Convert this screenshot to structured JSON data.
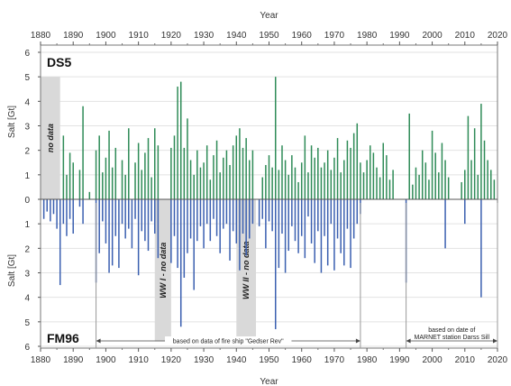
{
  "chart_data": {
    "type": "bar",
    "x_axis": {
      "title": "Year",
      "range": [
        1880,
        2020
      ],
      "ticks": [
        1880,
        1890,
        1900,
        1910,
        1920,
        1930,
        1940,
        1950,
        1960,
        1970,
        1980,
        1990,
        2000,
        2010,
        2020
      ],
      "shown": "top and bottom"
    },
    "y_axis": {
      "title": "Salt [Gt]",
      "ticks_top": [
        6,
        5,
        4,
        3,
        2,
        1,
        0
      ],
      "ticks_bottom": [
        1,
        2,
        3,
        4,
        5,
        6
      ],
      "range_top": [
        0,
        6
      ],
      "range_bottom": [
        0,
        6
      ]
    },
    "grid": true,
    "series": [
      {
        "name": "DS5",
        "color": "#2e8b57",
        "direction": "up",
        "points": [
          [
            1887,
            2.6
          ],
          [
            1888,
            1.0
          ],
          [
            1889,
            1.9
          ],
          [
            1890,
            1.5
          ],
          [
            1892,
            1.2
          ],
          [
            1893,
            3.8
          ],
          [
            1895,
            0.3
          ],
          [
            1897,
            2.0
          ],
          [
            1898,
            2.6
          ],
          [
            1899,
            1.1
          ],
          [
            1900,
            1.7
          ],
          [
            1901,
            2.8
          ],
          [
            1902,
            1.3
          ],
          [
            1903,
            2.1
          ],
          [
            1905,
            1.6
          ],
          [
            1906,
            1.0
          ],
          [
            1907,
            2.9
          ],
          [
            1909,
            1.5
          ],
          [
            1910,
            2.3
          ],
          [
            1911,
            1.2
          ],
          [
            1912,
            1.9
          ],
          [
            1913,
            2.5
          ],
          [
            1914,
            0.9
          ],
          [
            1915,
            2.9
          ],
          [
            1916,
            2.2
          ],
          [
            1920,
            2.1
          ],
          [
            1921,
            2.6
          ],
          [
            1922,
            4.6
          ],
          [
            1923,
            4.8
          ],
          [
            1924,
            2.1
          ],
          [
            1925,
            3.3
          ],
          [
            1926,
            1.6
          ],
          [
            1927,
            1.0
          ],
          [
            1928,
            2.0
          ],
          [
            1929,
            1.3
          ],
          [
            1930,
            1.5
          ],
          [
            1931,
            2.2
          ],
          [
            1932,
            0.8
          ],
          [
            1933,
            1.8
          ],
          [
            1934,
            2.4
          ],
          [
            1935,
            1.1
          ],
          [
            1936,
            1.7
          ],
          [
            1937,
            2.0
          ],
          [
            1938,
            1.4
          ],
          [
            1939,
            2.2
          ],
          [
            1940,
            2.6
          ],
          [
            1941,
            2.9
          ],
          [
            1942,
            2.1
          ],
          [
            1943,
            2.5
          ],
          [
            1944,
            1.6
          ],
          [
            1945,
            2.0
          ],
          [
            1948,
            0.9
          ],
          [
            1949,
            1.4
          ],
          [
            1950,
            1.8
          ],
          [
            1951,
            1.3
          ],
          [
            1952,
            5.0
          ],
          [
            1953,
            1.2
          ],
          [
            1954,
            2.2
          ],
          [
            1955,
            1.6
          ],
          [
            1956,
            1.0
          ],
          [
            1957,
            1.8
          ],
          [
            1958,
            1.3
          ],
          [
            1959,
            0.7
          ],
          [
            1960,
            1.5
          ],
          [
            1961,
            2.6
          ],
          [
            1962,
            1.1
          ],
          [
            1963,
            2.2
          ],
          [
            1964,
            1.7
          ],
          [
            1965,
            2.1
          ],
          [
            1966,
            1.3
          ],
          [
            1967,
            1.5
          ],
          [
            1968,
            2.0
          ],
          [
            1969,
            1.2
          ],
          [
            1970,
            1.7
          ],
          [
            1971,
            2.5
          ],
          [
            1972,
            1.1
          ],
          [
            1973,
            1.6
          ],
          [
            1974,
            2.4
          ],
          [
            1975,
            2.1
          ],
          [
            1976,
            2.7
          ],
          [
            1977,
            3.1
          ],
          [
            1978,
            1.5
          ],
          [
            1979,
            1.1
          ],
          [
            1980,
            1.6
          ],
          [
            1981,
            2.2
          ],
          [
            1982,
            1.9
          ],
          [
            1983,
            1.3
          ],
          [
            1984,
            0.9
          ],
          [
            1985,
            2.3
          ],
          [
            1986,
            1.8
          ],
          [
            1987,
            0.8
          ],
          [
            1988,
            1.2
          ],
          [
            1993,
            3.5
          ],
          [
            1994,
            0.6
          ],
          [
            1995,
            1.3
          ],
          [
            1996,
            1.0
          ],
          [
            1997,
            2.0
          ],
          [
            1998,
            1.5
          ],
          [
            1999,
            0.8
          ],
          [
            2000,
            2.8
          ],
          [
            2001,
            1.9
          ],
          [
            2002,
            1.1
          ],
          [
            2003,
            2.3
          ],
          [
            2004,
            1.6
          ],
          [
            2005,
            0.9
          ],
          [
            2009,
            0.7
          ],
          [
            2010,
            1.2
          ],
          [
            2011,
            3.4
          ],
          [
            2012,
            1.6
          ],
          [
            2013,
            2.9
          ],
          [
            2014,
            1.0
          ],
          [
            2015,
            3.9
          ],
          [
            2016,
            2.4
          ],
          [
            2017,
            1.6
          ],
          [
            2018,
            1.2
          ],
          [
            2019,
            0.8
          ]
        ]
      },
      {
        "name": "FM96",
        "color": "#3a5fb0",
        "direction": "down",
        "points": [
          [
            1881,
            0.8
          ],
          [
            1882,
            0.5
          ],
          [
            1883,
            0.9
          ],
          [
            1884,
            0.6
          ],
          [
            1885,
            1.2
          ],
          [
            1886,
            3.5
          ],
          [
            1887,
            1.0
          ],
          [
            1888,
            1.5
          ],
          [
            1889,
            0.8
          ],
          [
            1890,
            1.4
          ],
          [
            1892,
            0.3
          ],
          [
            1893,
            1.0
          ],
          [
            1897,
            3.4
          ],
          [
            1898,
            2.2
          ],
          [
            1899,
            0.9
          ],
          [
            1900,
            1.8
          ],
          [
            1901,
            3.0
          ],
          [
            1902,
            2.7
          ],
          [
            1903,
            1.5
          ],
          [
            1904,
            2.8
          ],
          [
            1905,
            1.0
          ],
          [
            1906,
            1.6
          ],
          [
            1907,
            1.2
          ],
          [
            1908,
            2.0
          ],
          [
            1909,
            0.8
          ],
          [
            1910,
            3.1
          ],
          [
            1911,
            1.3
          ],
          [
            1912,
            1.7
          ],
          [
            1913,
            2.1
          ],
          [
            1914,
            0.9
          ],
          [
            1915,
            1.4
          ],
          [
            1916,
            2.4
          ],
          [
            1920,
            2.6
          ],
          [
            1921,
            1.5
          ],
          [
            1922,
            2.8
          ],
          [
            1923,
            5.2
          ],
          [
            1924,
            3.2
          ],
          [
            1925,
            2.2
          ],
          [
            1926,
            1.6
          ],
          [
            1927,
            3.7
          ],
          [
            1928,
            1.7
          ],
          [
            1929,
            1.1
          ],
          [
            1930,
            2.0
          ],
          [
            1931,
            1.0
          ],
          [
            1932,
            1.7
          ],
          [
            1933,
            0.8
          ],
          [
            1934,
            1.5
          ],
          [
            1935,
            2.2
          ],
          [
            1936,
            1.2
          ],
          [
            1937,
            1.0
          ],
          [
            1938,
            2.5
          ],
          [
            1939,
            1.3
          ],
          [
            1940,
            1.8
          ],
          [
            1941,
            2.9
          ],
          [
            1942,
            1.4
          ],
          [
            1943,
            2.3
          ],
          [
            1944,
            1.6
          ],
          [
            1945,
            1.0
          ],
          [
            1947,
            1.1
          ],
          [
            1948,
            0.8
          ],
          [
            1949,
            2.0
          ],
          [
            1950,
            0.9
          ],
          [
            1951,
            1.3
          ],
          [
            1952,
            5.3
          ],
          [
            1953,
            2.8
          ],
          [
            1954,
            1.4
          ],
          [
            1955,
            3.0
          ],
          [
            1956,
            2.1
          ],
          [
            1957,
            1.1
          ],
          [
            1958,
            1.7
          ],
          [
            1959,
            2.2
          ],
          [
            1960,
            1.5
          ],
          [
            1961,
            2.4
          ],
          [
            1962,
            0.7
          ],
          [
            1963,
            1.8
          ],
          [
            1964,
            2.6
          ],
          [
            1965,
            1.3
          ],
          [
            1966,
            3.0
          ],
          [
            1967,
            1.5
          ],
          [
            1968,
            2.7
          ],
          [
            1969,
            1.0
          ],
          [
            1970,
            2.9
          ],
          [
            1971,
            1.6
          ],
          [
            1972,
            2.2
          ],
          [
            1973,
            2.7
          ],
          [
            1974,
            1.2
          ],
          [
            1975,
            2.8
          ],
          [
            1976,
            1.6
          ],
          [
            1977,
            1.0
          ],
          [
            1978,
            0.6
          ],
          [
            1992,
            3.4
          ],
          [
            2004,
            2.0
          ],
          [
            2010,
            1.0
          ],
          [
            2015,
            4.0
          ]
        ]
      }
    ],
    "shaded_periods": [
      {
        "from": 1880,
        "to": 1886,
        "panel": "DS5",
        "label": "no data"
      },
      {
        "from": 1915,
        "to": 1920,
        "panel": "FM96",
        "label": "WW I  -  no data"
      },
      {
        "from": 1940,
        "to": 1946,
        "panel": "FM96",
        "label": "WW II  -  no data"
      }
    ],
    "annotations": [
      {
        "from": 1897,
        "to": 1978,
        "text": "based on data of fire ship \"Gedser Rev\""
      },
      {
        "from": 1992,
        "to": 2020,
        "text_lines": [
          "based on date of",
          "MARNET station Darss Sill"
        ]
      }
    ],
    "panel_labels": [
      "DS5",
      "FM96"
    ]
  }
}
